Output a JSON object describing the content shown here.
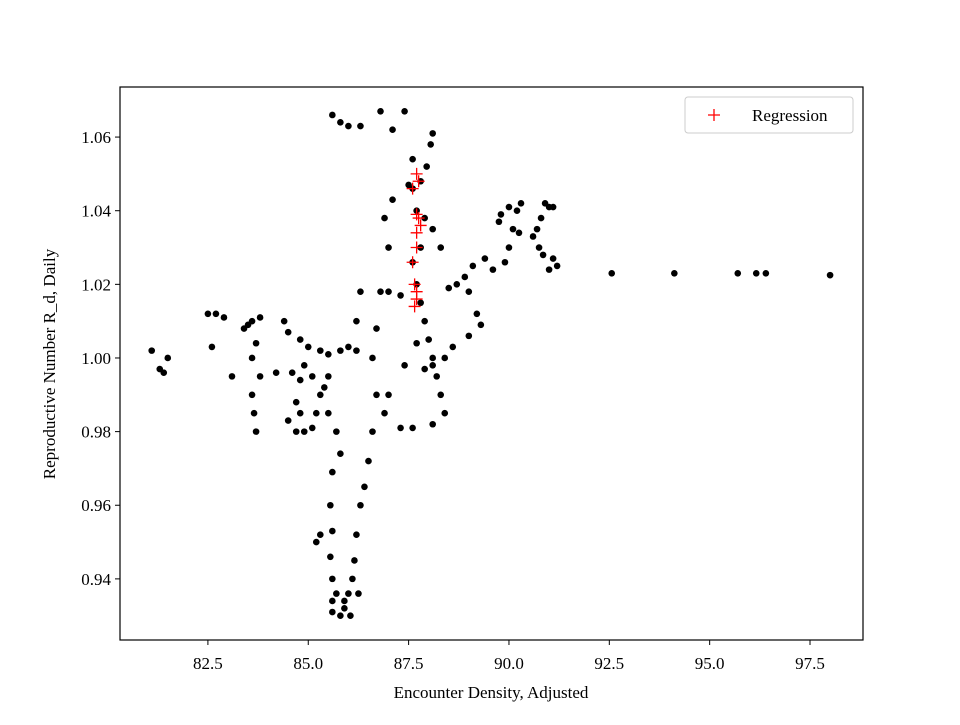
{
  "chart_data": {
    "type": "scatter",
    "x_label": "Encounter Density, Adjusted",
    "y_label": "Reproductive Number R_d, Daily",
    "xlim": [
      80.31,
      98.82
    ],
    "ylim": [
      0.9234,
      1.0736
    ],
    "xticks": [
      82.5,
      {
        "value": 85,
        "label": "85.0"
      },
      87.5,
      {
        "value": 90,
        "label": "90.0"
      },
      92.5,
      {
        "value": 95,
        "label": "95.0"
      },
      97.5
    ],
    "yticks": [
      0.94,
      0.96,
      0.98,
      {
        "value": 1,
        "label": "1.00"
      },
      1.02,
      1.04,
      1.06
    ],
    "legend": "upper right",
    "series": [
      {
        "color": "#000000",
        "marker": "dot",
        "x": [
          92.56,
          94.12,
          95.7,
          96.16,
          96.4,
          98.0,
          91.2,
          91.0,
          91.1,
          91.0,
          90.9,
          91.1,
          90.8,
          90.7,
          90.6,
          90.75,
          90.85,
          90.3,
          90.0,
          90.2,
          89.8,
          89.75,
          90.1,
          90.25,
          90.0,
          89.9,
          89.6,
          89.4,
          89.1,
          88.9,
          89.0,
          88.7,
          88.5,
          89.2,
          89.3,
          89.0,
          88.6,
          88.4,
          88.1,
          87.9,
          88.1,
          88.05,
          87.95,
          87.8,
          87.6,
          87.7,
          87.9,
          88.1,
          88.3,
          87.8,
          87.6,
          87.7,
          87.8,
          87.9,
          88.0,
          88.1,
          88.2,
          88.3,
          88.4,
          88.1,
          87.7,
          87.4,
          87.0,
          86.9,
          87.3,
          87.6,
          86.7,
          86.6,
          86.8,
          87.0,
          87.3,
          87.1,
          86.9,
          87.0,
          85.6,
          85.8,
          86.0,
          86.3,
          86.8,
          87.4,
          87.1,
          87.5,
          87.6,
          86.3,
          86.2,
          86.7,
          86.6,
          86.5,
          86.4,
          86.3,
          86.2,
          86.15,
          86.1,
          86.0,
          85.9,
          85.8,
          85.9,
          85.7,
          85.6,
          85.55,
          85.6,
          85.55,
          85.6,
          85.8,
          85.7,
          85.5,
          85.3,
          85.1,
          85.6,
          85.6,
          86.05,
          86.25,
          85.2,
          85.3,
          84.4,
          84.5,
          84.8,
          85.0,
          85.3,
          85.5,
          85.8,
          86.0,
          86.2,
          84.9,
          84.8,
          84.7,
          84.5,
          84.7,
          84.9,
          85.1,
          85.2,
          85.4,
          85.5,
          84.8,
          84.6,
          84.2,
          81.1,
          81.3,
          81.4,
          81.5,
          82.5,
          82.7,
          82.9,
          82.6,
          83.1,
          83.5,
          83.6,
          83.8,
          83.7,
          83.4,
          83.6,
          83.65,
          83.7,
          83.8,
          83.6
        ],
        "values": [
          1.023,
          1.023,
          1.023,
          1.023,
          1.023,
          1.0225,
          1.025,
          1.024,
          1.027,
          1.041,
          1.042,
          1.041,
          1.038,
          1.035,
          1.033,
          1.03,
          1.028,
          1.042,
          1.041,
          1.04,
          1.039,
          1.037,
          1.035,
          1.034,
          1.03,
          1.026,
          1.024,
          1.027,
          1.025,
          1.022,
          1.018,
          1.02,
          1.019,
          1.012,
          1.009,
          1.006,
          1.003,
          1.0,
          0.998,
          0.997,
          1.061,
          1.058,
          1.052,
          1.048,
          1.046,
          1.04,
          1.038,
          1.035,
          1.03,
          1.03,
          1.026,
          1.02,
          1.015,
          1.01,
          1.005,
          1.0,
          0.995,
          0.99,
          0.985,
          0.982,
          1.004,
          0.998,
          0.99,
          0.985,
          0.981,
          0.981,
          1.008,
          1.0,
          1.018,
          1.018,
          1.017,
          1.043,
          1.038,
          1.03,
          1.066,
          1.064,
          1.063,
          1.063,
          1.067,
          1.067,
          1.062,
          1.047,
          1.054,
          1.018,
          1.01,
          0.99,
          0.98,
          0.972,
          0.965,
          0.96,
          0.952,
          0.945,
          0.94,
          0.936,
          0.932,
          0.93,
          0.934,
          0.936,
          0.94,
          0.946,
          0.953,
          0.96,
          0.969,
          0.974,
          0.98,
          0.985,
          0.99,
          0.995,
          0.931,
          0.934,
          0.93,
          0.936,
          0.95,
          0.952,
          1.01,
          1.007,
          1.005,
          1.003,
          1.002,
          1.001,
          1.002,
          1.003,
          1.002,
          0.998,
          0.994,
          0.988,
          0.983,
          0.98,
          0.98,
          0.981,
          0.985,
          0.992,
          0.995,
          0.985,
          0.996,
          0.996,
          1.002,
          0.997,
          0.996,
          1.0,
          1.012,
          1.012,
          1.011,
          1.003,
          0.995,
          1.009,
          1.01,
          1.011,
          1.004,
          1.008,
          0.99,
          0.985,
          0.98,
          0.995,
          1.0
        ]
      },
      {
        "name": "Regression",
        "color": "#ff0000",
        "marker": "plus",
        "x": [
          87.7,
          87.75,
          87.6,
          87.7,
          87.75,
          87.8,
          87.7,
          87.65,
          87.7,
          87.7,
          87.65,
          87.7,
          87.6
        ],
        "values": [
          1.05,
          1.048,
          1.046,
          1.039,
          1.038,
          1.036,
          1.034,
          1.02,
          1.018,
          1.016,
          1.014,
          1.03,
          1.026
        ]
      }
    ]
  }
}
